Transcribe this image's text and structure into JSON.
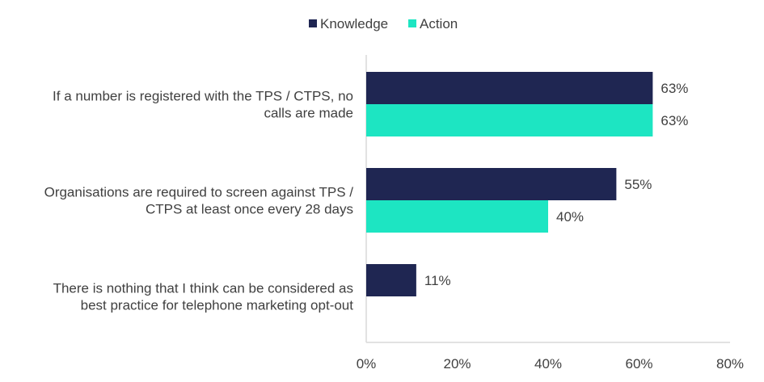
{
  "chart_data": {
    "type": "bar",
    "orientation": "horizontal",
    "categories": [
      [
        "If a number is registered with the TPS / CTPS, no",
        "calls are made"
      ],
      [
        "Organisations are required to screen against TPS /",
        "CTPS at least once every 28 days"
      ],
      [
        "There is nothing that I think can be considered as",
        "best practice for telephone marketing opt-out"
      ]
    ],
    "series": [
      {
        "name": "Knowledge",
        "color": "#1f2652",
        "values": [
          63,
          55,
          11
        ],
        "labels": [
          "63%",
          "55%",
          "11%"
        ]
      },
      {
        "name": "Action",
        "color": "#1de5c2",
        "values": [
          63,
          40,
          null
        ],
        "labels": [
          "63%",
          "40%",
          ""
        ]
      }
    ],
    "xlim": [
      0,
      80
    ],
    "xticks": [
      "0%",
      "20%",
      "40%",
      "60%",
      "80%"
    ],
    "legend_position": "top",
    "grid": false
  }
}
